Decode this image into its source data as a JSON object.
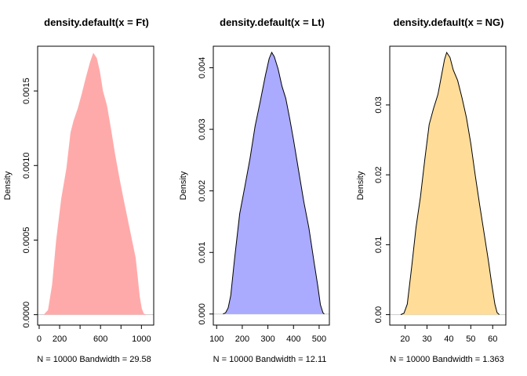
{
  "chart_data": [
    {
      "type": "area",
      "title": "density.default(x = Ft)",
      "xlabel": "N = 10000   Bandwidth = 29.58",
      "ylabel": "Density",
      "xlim": [
        -15,
        1120
      ],
      "ylim": [
        -7e-05,
        0.0018
      ],
      "xticks": [
        0,
        200,
        400,
        600,
        800,
        1000
      ],
      "xtick_labels": [
        "0",
        "200",
        "",
        "600",
        "",
        "1000"
      ],
      "yticks": [
        0,
        0.0005,
        0.001,
        0.0015
      ],
      "ytick_labels": [
        "0.0000",
        "0.0005",
        "0.0010",
        "0.0015"
      ],
      "fill": "#ffaaaa",
      "stroke": "#ffaaaa",
      "baseline_color": "#cccccc",
      "x": [
        50,
        90,
        130,
        170,
        220,
        270,
        310,
        340,
        380,
        420,
        460,
        500,
        530,
        560,
        590,
        620,
        660,
        700,
        740,
        780,
        820,
        850,
        880,
        910,
        940,
        960,
        980,
        1000,
        1020,
        1040
      ],
      "y": [
        0,
        3e-05,
        0.0002,
        0.0005,
        0.00078,
        0.00098,
        0.00122,
        0.0013,
        0.00138,
        0.00148,
        0.00159,
        0.00169,
        0.00175,
        0.00172,
        0.00163,
        0.0015,
        0.0014,
        0.00124,
        0.00107,
        0.00092,
        0.00078,
        0.00068,
        0.00058,
        0.00048,
        0.00038,
        0.00025,
        0.00012,
        4e-05,
        5e-06,
        0
      ]
    },
    {
      "type": "area",
      "title": "density.default(x = Lt)",
      "xlabel": "N = 10000   Bandwidth = 12.11",
      "ylabel": "Density",
      "xlim": [
        87,
        540
      ],
      "ylim": [
        -0.00018,
        0.00435
      ],
      "xticks": [
        100,
        200,
        300,
        400,
        500
      ],
      "xtick_labels": [
        "100",
        "200",
        "300",
        "400",
        "500"
      ],
      "yticks": [
        0,
        0.001,
        0.002,
        0.003,
        0.004
      ],
      "ytick_labels": [
        "0.000",
        "0.001",
        "0.002",
        "0.003",
        "0.004"
      ],
      "fill": "#aaaaff",
      "stroke": "#000000",
      "baseline_color": "#cccccc",
      "x": [
        125,
        135,
        145,
        155,
        170,
        190,
        210,
        230,
        250,
        270,
        290,
        305,
        315,
        325,
        340,
        355,
        370,
        385,
        400,
        420,
        440,
        460,
        480,
        495,
        505,
        515,
        520
      ],
      "y": [
        0,
        2e-05,
        0.0001,
        0.0003,
        0.0009,
        0.00163,
        0.00207,
        0.00252,
        0.00305,
        0.00345,
        0.00387,
        0.00415,
        0.00425,
        0.00418,
        0.00398,
        0.0037,
        0.0035,
        0.00318,
        0.00283,
        0.00233,
        0.00183,
        0.0014,
        0.00085,
        0.00045,
        0.00015,
        2e-05,
        0
      ]
    },
    {
      "type": "area",
      "title": "density.default(x = NG)",
      "xlabel": "N = 10000   Bandwidth = 1.363",
      "ylabel": "Density",
      "xlim": [
        13,
        66
      ],
      "ylim": [
        -0.0015,
        0.0384
      ],
      "xticks": [
        20,
        30,
        40,
        50,
        60
      ],
      "xtick_labels": [
        "20",
        "30",
        "40",
        "50",
        "60"
      ],
      "yticks": [
        0,
        0.01,
        0.02,
        0.03
      ],
      "ytick_labels": [
        "0.00",
        "0.01",
        "0.02",
        "0.03"
      ],
      "fill": "#ffdd99",
      "stroke": "#000000",
      "baseline_color": "#cccccc",
      "x": [
        18,
        19.5,
        21,
        23,
        25,
        27,
        29,
        31,
        33,
        35,
        36.5,
        38,
        39,
        40.5,
        42,
        44,
        46,
        48,
        50,
        52,
        54,
        56,
        58,
        59.5,
        61,
        62,
        63
      ],
      "y": [
        0,
        0.0002,
        0.0015,
        0.0068,
        0.0125,
        0.0168,
        0.0222,
        0.0272,
        0.0295,
        0.0315,
        0.034,
        0.0365,
        0.0375,
        0.0368,
        0.035,
        0.0335,
        0.031,
        0.0282,
        0.0245,
        0.02,
        0.0158,
        0.0118,
        0.0078,
        0.0045,
        0.0015,
        0.0003,
        0
      ]
    }
  ]
}
